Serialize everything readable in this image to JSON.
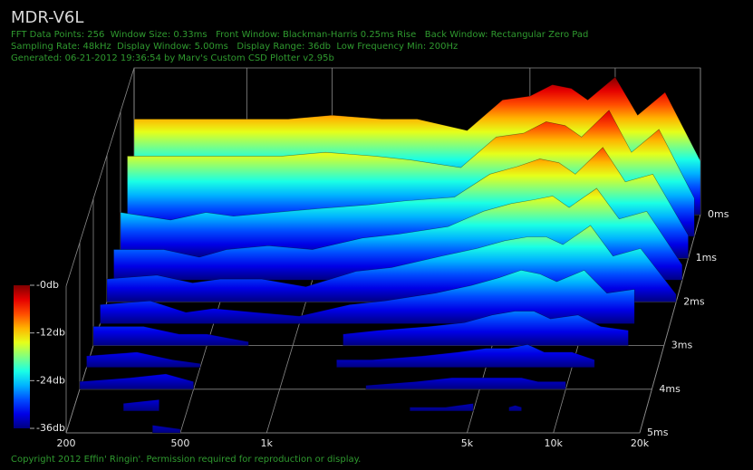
{
  "chart_data": {
    "type": "csd",
    "title": "MDR-V6L",
    "info": [
      "FFT Data Points: 256  Window Size: 0.33ms   Front Window: Blackman-Harris 0.25ms Rise   Back Window: Rectangular Zero Pad",
      "Sampling Rate: 48kHz  Display Window: 5.00ms   Display Range: 36db  Low Frequency Min: 200Hz",
      "Generated: 06-21-2012 19:36:54 by Marv's Custom CSD Plotter v2.95b"
    ],
    "footer": "Copyright 2012 Effin' Ringin'. Permission required for reproduction or display.",
    "xscale": "log",
    "xlim": [
      200,
      20000
    ],
    "xticks": [
      200,
      500,
      {
        "value": 1000,
        "label": "1k"
      },
      {
        "value": 5000,
        "label": "5k"
      },
      {
        "value": 10000,
        "label": "10k"
      },
      {
        "value": 20000,
        "label": "20k"
      }
    ],
    "zlim": [
      0,
      5
    ],
    "zticks": [
      {
        "value": 0,
        "label": "0ms"
      },
      {
        "value": 1,
        "label": "1ms"
      },
      {
        "value": 2,
        "label": "2ms"
      },
      {
        "value": 3,
        "label": "3ms"
      },
      {
        "value": 4,
        "label": "4ms"
      },
      {
        "value": 5,
        "label": "5ms"
      }
    ],
    "vlim": [
      -36,
      0
    ],
    "colorbar_ticks": [
      {
        "value": 0,
        "label": "-0db"
      },
      {
        "value": -12,
        "label": "-12db"
      },
      {
        "value": -24,
        "label": "-24db"
      },
      {
        "value": -36,
        "label": "-36db"
      }
    ],
    "x": [
      200,
      300,
      400,
      500,
      700,
      1000,
      1500,
      2000,
      3000,
      4000,
      5000,
      6000,
      7000,
      8000,
      10000,
      12000,
      15000,
      20000
    ],
    "slices": [
      {
        "time": 0,
        "values": [
          -11,
          -11,
          -11,
          -11,
          -11,
          -10,
          -11,
          -11,
          -14,
          -6,
          -5,
          -2,
          -3,
          -6,
          0,
          -10,
          -4,
          -22
        ]
      },
      {
        "time": 0.5,
        "values": [
          -15,
          -15,
          -15,
          -15,
          -15,
          -14,
          -15,
          -16,
          -18,
          -10,
          -9,
          -6,
          -7,
          -10,
          -3,
          -14,
          -8,
          -26
        ]
      },
      {
        "time": 1,
        "values": [
          -24,
          -26,
          -24,
          -25,
          -24,
          -23,
          -22,
          -21,
          -20,
          -14,
          -12,
          -10,
          -11,
          -14,
          -7,
          -16,
          -14,
          -30
        ]
      },
      {
        "time": 1.5,
        "values": [
          -28,
          -28,
          -30,
          -28,
          -27,
          -28,
          -25,
          -24,
          -22,
          -18,
          -16,
          -15,
          -14,
          -17,
          -12,
          -20,
          -18,
          -32
        ]
      },
      {
        "time": 2,
        "values": [
          -30,
          -29,
          -31,
          -30,
          -30,
          -32,
          -28,
          -27,
          -24,
          -22,
          -20,
          -19,
          -19,
          -21,
          -16,
          -24,
          -22,
          -34
        ]
      },
      {
        "time": 2.5,
        "values": [
          -31,
          -30,
          -33,
          -32,
          -33,
          -34,
          -31,
          -30,
          -28,
          -26,
          -24,
          -22,
          -23,
          -25,
          -22,
          -28,
          -27,
          null
        ]
      },
      {
        "time": 3,
        "values": [
          -31,
          -31,
          -33,
          -33,
          -35,
          null,
          -33,
          -32,
          -31,
          -30,
          -28,
          -27,
          -27,
          -29,
          -28,
          -31,
          -32,
          null
        ]
      },
      {
        "time": 3.5,
        "values": [
          -33,
          -32,
          -34,
          -35,
          null,
          null,
          -34,
          -34,
          -33,
          -32,
          -31,
          -31,
          -30,
          -32,
          -32,
          -34,
          null,
          null
        ]
      },
      {
        "time": 4,
        "values": [
          -34,
          -33,
          -32,
          -34,
          null,
          null,
          null,
          -35,
          -34,
          -33,
          -33,
          -33,
          -33,
          -34,
          -34,
          null,
          null,
          null
        ]
      },
      {
        "time": 4.5,
        "values": [
          null,
          -34,
          -33,
          null,
          null,
          null,
          null,
          null,
          -35,
          -35,
          -34,
          null,
          -35,
          null,
          null,
          null,
          null,
          null
        ]
      },
      {
        "time": 5,
        "values": [
          null,
          null,
          -34,
          -35,
          null,
          null,
          null,
          null,
          null,
          null,
          null,
          null,
          null,
          null,
          null,
          null,
          null,
          null
        ]
      }
    ]
  }
}
